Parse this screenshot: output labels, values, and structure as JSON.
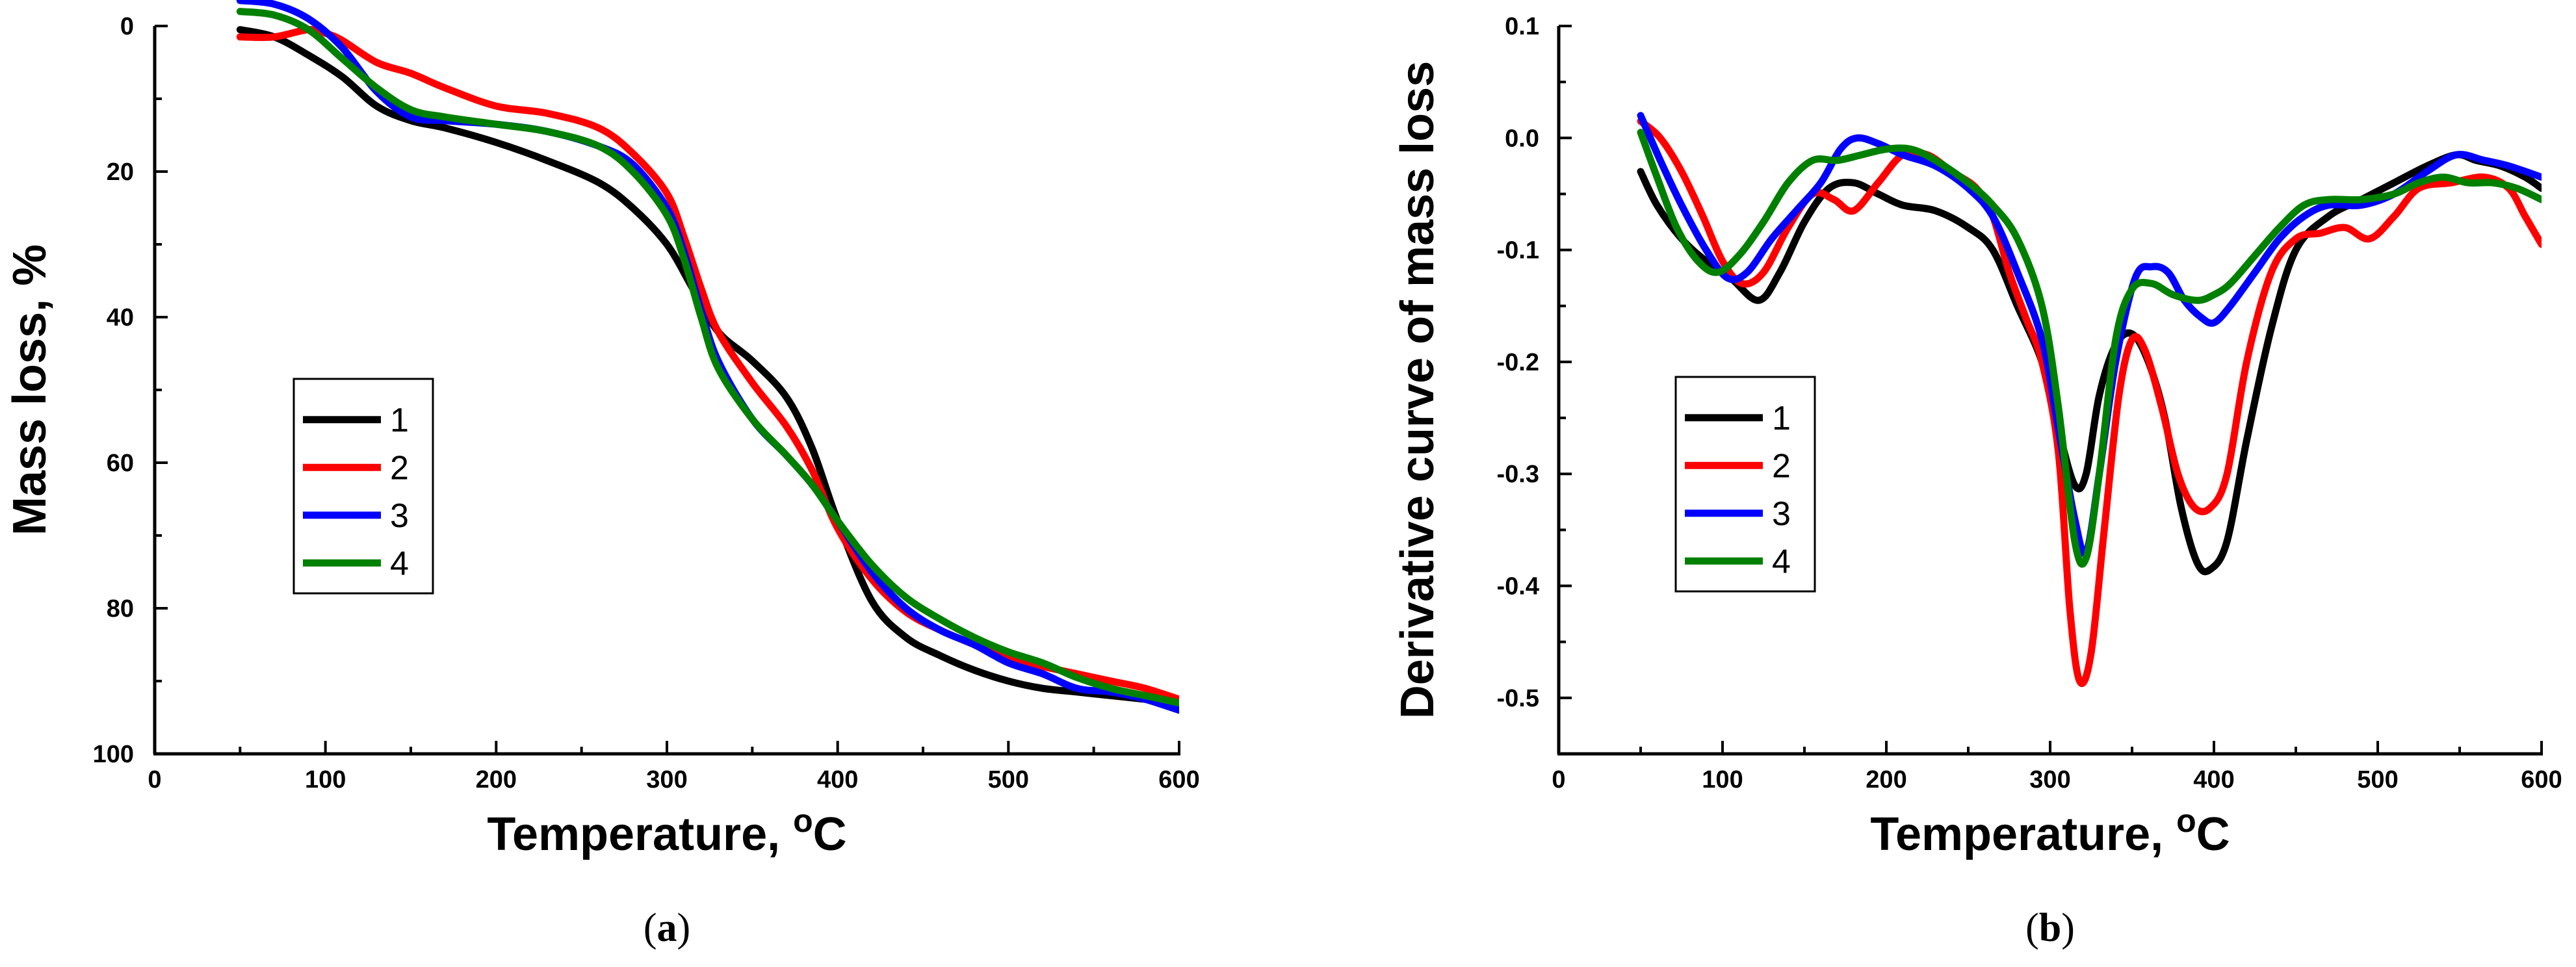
{
  "chart_data": [
    {
      "type": "line",
      "panel": "a",
      "xlabel": "Temperature, ",
      "xlabel_sup": "o",
      "xlabel_unit": "C",
      "ylabel": "Mass loss, %",
      "xlim": [
        0,
        600
      ],
      "ylim": [
        0,
        100
      ],
      "y_inverted": true,
      "xticks": [
        0,
        100,
        200,
        300,
        400,
        500,
        600
      ],
      "yticks": [
        0,
        20,
        40,
        60,
        80,
        100
      ],
      "legend_position": "center-left",
      "caption_open": "(",
      "caption_letter": "a",
      "caption_close": ")",
      "series": [
        {
          "name": "1",
          "color": "#000000",
          "x": [
            50,
            70,
            90,
            110,
            130,
            150,
            170,
            200,
            230,
            260,
            280,
            300,
            315,
            330,
            350,
            370,
            385,
            400,
            420,
            440,
            460,
            480,
            500,
            520,
            540,
            560,
            580,
            600
          ],
          "y": [
            0.5,
            1.5,
            4,
            7,
            11,
            13,
            14,
            16,
            18.5,
            21.5,
            25,
            30,
            36,
            42,
            46,
            51,
            58,
            68,
            79,
            84,
            86.5,
            88.5,
            90,
            91,
            91.5,
            92,
            92.5,
            93
          ]
        },
        {
          "name": "2",
          "color": "#ff0000",
          "x": [
            50,
            70,
            90,
            100,
            110,
            130,
            150,
            170,
            200,
            230,
            260,
            280,
            300,
            310,
            320,
            330,
            350,
            370,
            385,
            400,
            420,
            440,
            460,
            480,
            500,
            520,
            540,
            560,
            580,
            600
          ],
          "y": [
            1.5,
            1.5,
            0.5,
            1,
            2,
            5,
            6.5,
            8.5,
            11,
            12,
            14,
            17.5,
            23,
            29,
            36,
            42,
            49,
            55,
            61,
            69,
            76,
            80.5,
            83,
            85,
            87,
            88,
            89,
            90,
            91,
            92.5
          ]
        },
        {
          "name": "3",
          "color": "#0000ff",
          "x": [
            50,
            70,
            90,
            110,
            130,
            150,
            170,
            200,
            230,
            260,
            280,
            300,
            310,
            320,
            330,
            350,
            370,
            385,
            400,
            420,
            440,
            460,
            480,
            500,
            520,
            540,
            560,
            580,
            600
          ],
          "y": [
            -3.5,
            -3,
            -1,
            3,
            9,
            12.5,
            13,
            13.5,
            14.5,
            16.5,
            19,
            25,
            31,
            39,
            46,
            54,
            59,
            63,
            68,
            75,
            80,
            83,
            85,
            87.5,
            89,
            91,
            91.5,
            92.5,
            94
          ]
        },
        {
          "name": "4",
          "color": "#008000",
          "x": [
            50,
            70,
            90,
            110,
            130,
            150,
            170,
            200,
            230,
            260,
            280,
            300,
            310,
            320,
            330,
            350,
            370,
            385,
            400,
            420,
            440,
            460,
            480,
            500,
            520,
            540,
            560,
            580,
            600
          ],
          "y": [
            -2,
            -1.5,
            0.5,
            4.5,
            8.5,
            11.5,
            12.5,
            13.5,
            14.5,
            16.5,
            20,
            26,
            32,
            40,
            47,
            54,
            59,
            63,
            68,
            74,
            78.5,
            81.5,
            84,
            86,
            87.5,
            89.5,
            91,
            92,
            93
          ]
        }
      ]
    },
    {
      "type": "line",
      "panel": "b",
      "xlabel": "Temperature, ",
      "xlabel_sup": "o",
      "xlabel_unit": "C",
      "ylabel": "Derivative curve of mass loss",
      "xlim": [
        0,
        600
      ],
      "ylim": [
        -0.55,
        0.1
      ],
      "xticks": [
        0,
        100,
        200,
        300,
        400,
        500,
        600
      ],
      "yticks": [
        0.1,
        0.0,
        -0.1,
        -0.2,
        -0.3,
        -0.4,
        -0.5
      ],
      "ytick_labels": [
        "0.1",
        "0.0",
        "-0.1",
        "-0.2",
        "-0.3",
        "-0.4",
        "-0.5"
      ],
      "legend_position": "center-left",
      "caption_open": "(",
      "caption_letter": "b",
      "caption_close": ")",
      "series": [
        {
          "name": "1",
          "color": "#000000",
          "x": [
            50,
            60,
            75,
            90,
            105,
            122,
            135,
            150,
            165,
            180,
            195,
            210,
            230,
            250,
            265,
            280,
            295,
            305,
            315,
            322,
            330,
            340,
            350,
            360,
            370,
            380,
            390,
            398,
            408,
            420,
            435,
            450,
            470,
            490,
            510,
            530,
            548,
            560,
            575,
            590,
            600
          ],
          "y": [
            -0.03,
            -0.06,
            -0.09,
            -0.11,
            -0.125,
            -0.145,
            -0.12,
            -0.075,
            -0.045,
            -0.04,
            -0.05,
            -0.06,
            -0.065,
            -0.08,
            -0.1,
            -0.15,
            -0.2,
            -0.26,
            -0.31,
            -0.3,
            -0.23,
            -0.185,
            -0.175,
            -0.2,
            -0.25,
            -0.33,
            -0.38,
            -0.385,
            -0.36,
            -0.27,
            -0.17,
            -0.1,
            -0.07,
            -0.055,
            -0.04,
            -0.025,
            -0.015,
            -0.02,
            -0.025,
            -0.035,
            -0.045
          ]
        },
        {
          "name": "2",
          "color": "#ff0000",
          "x": [
            50,
            62,
            75,
            88,
            100,
            112,
            125,
            140,
            155,
            168,
            180,
            195,
            210,
            225,
            240,
            255,
            265,
            275,
            285,
            295,
            305,
            312,
            318,
            325,
            333,
            342,
            350,
            358,
            368,
            378,
            388,
            398,
            408,
            420,
            435,
            450,
            465,
            480,
            495,
            510,
            525,
            545,
            565,
            580,
            590,
            600
          ],
          "y": [
            0.015,
            0.0,
            -0.03,
            -0.07,
            -0.11,
            -0.13,
            -0.12,
            -0.08,
            -0.05,
            -0.055,
            -0.065,
            -0.04,
            -0.015,
            -0.015,
            -0.03,
            -0.045,
            -0.07,
            -0.12,
            -0.16,
            -0.2,
            -0.28,
            -0.42,
            -0.485,
            -0.46,
            -0.35,
            -0.23,
            -0.18,
            -0.19,
            -0.24,
            -0.3,
            -0.33,
            -0.33,
            -0.3,
            -0.2,
            -0.12,
            -0.09,
            -0.085,
            -0.08,
            -0.09,
            -0.07,
            -0.045,
            -0.04,
            -0.035,
            -0.045,
            -0.07,
            -0.095
          ]
        },
        {
          "name": "3",
          "color": "#0000ff",
          "x": [
            50,
            62,
            75,
            90,
            103,
            115,
            130,
            145,
            160,
            172,
            182,
            195,
            210,
            230,
            250,
            265,
            280,
            295,
            305,
            315,
            322,
            330,
            340,
            352,
            362,
            372,
            382,
            392,
            400,
            410,
            425,
            440,
            455,
            470,
            490,
            510,
            530,
            548,
            565,
            580,
            600
          ],
          "y": [
            0.02,
            -0.02,
            -0.06,
            -0.1,
            -0.125,
            -0.12,
            -0.09,
            -0.065,
            -0.04,
            -0.01,
            0.0,
            -0.005,
            -0.015,
            -0.025,
            -0.045,
            -0.07,
            -0.12,
            -0.18,
            -0.26,
            -0.34,
            -0.37,
            -0.3,
            -0.2,
            -0.125,
            -0.115,
            -0.12,
            -0.145,
            -0.16,
            -0.165,
            -0.15,
            -0.12,
            -0.09,
            -0.07,
            -0.06,
            -0.06,
            -0.05,
            -0.03,
            -0.015,
            -0.02,
            -0.025,
            -0.035
          ]
        },
        {
          "name": "4",
          "color": "#008000",
          "x": [
            50,
            60,
            72,
            85,
            97,
            110,
            125,
            140,
            155,
            170,
            185,
            200,
            215,
            230,
            250,
            265,
            280,
            295,
            305,
            315,
            322,
            330,
            340,
            350,
            362,
            375,
            390,
            400,
            410,
            425,
            440,
            455,
            470,
            490,
            510,
            525,
            540,
            555,
            570,
            585,
            600
          ],
          "y": [
            0.005,
            -0.035,
            -0.08,
            -0.11,
            -0.12,
            -0.105,
            -0.075,
            -0.04,
            -0.02,
            -0.02,
            -0.015,
            -0.01,
            -0.01,
            -0.02,
            -0.04,
            -0.06,
            -0.09,
            -0.15,
            -0.24,
            -0.36,
            -0.375,
            -0.3,
            -0.18,
            -0.135,
            -0.13,
            -0.14,
            -0.145,
            -0.14,
            -0.13,
            -0.105,
            -0.08,
            -0.06,
            -0.055,
            -0.055,
            -0.05,
            -0.04,
            -0.035,
            -0.04,
            -0.04,
            -0.045,
            -0.055
          ]
        }
      ]
    }
  ]
}
